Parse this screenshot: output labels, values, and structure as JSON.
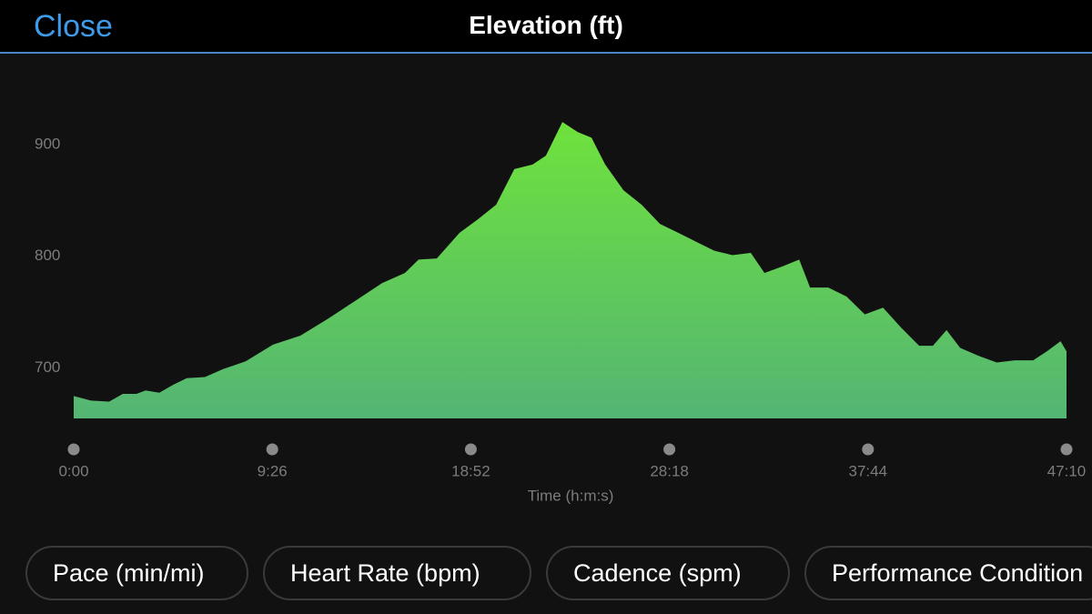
{
  "header": {
    "close": "Close"
  },
  "chart_data": {
    "type": "area",
    "title": "Elevation (ft)",
    "xlabel": "Time (h:m:s)",
    "x": [
      0,
      49,
      101,
      140,
      179,
      205,
      244,
      283,
      322,
      374,
      425,
      490,
      568,
      646,
      724,
      802,
      879,
      944,
      983,
      1035,
      1100,
      1152,
      1204,
      1256,
      1308,
      1346,
      1393,
      1437,
      1476,
      1515,
      1567,
      1619,
      1671,
      1723,
      1774,
      1826,
      1878,
      1930,
      1969,
      2021,
      2068,
      2099,
      2151,
      2203,
      2255,
      2307,
      2359,
      2410,
      2449,
      2488,
      2527,
      2579,
      2631,
      2683,
      2735,
      2774,
      2813,
      2830
    ],
    "values": [
      675,
      671,
      670,
      677,
      677,
      680,
      678,
      685,
      691,
      692,
      699,
      706,
      721,
      729,
      744,
      760,
      776,
      785,
      797,
      798,
      821,
      833,
      846,
      878,
      882,
      890,
      920,
      911,
      906,
      882,
      859,
      846,
      829,
      821,
      813,
      805,
      801,
      803,
      785,
      791,
      797,
      772,
      772,
      764,
      748,
      754,
      736,
      720,
      720,
      734,
      718,
      711,
      705,
      707,
      707,
      715,
      724,
      715
    ],
    "color": [
      "#6fe23c",
      "#54b574"
    ],
    "xlim": [
      0,
      2830
    ],
    "ylim": [
      655,
      960
    ],
    "xticks": [
      {
        "value": 0,
        "label": "0:00"
      },
      {
        "value": 566,
        "label": "9:26"
      },
      {
        "value": 1132,
        "label": "18:52"
      },
      {
        "value": 1698,
        "label": "28:18"
      },
      {
        "value": 2264,
        "label": "37:44"
      },
      {
        "value": 2830,
        "label": "47:10"
      }
    ],
    "yticks": [
      700,
      800,
      900
    ],
    "grid": false
  },
  "buttons": [
    "Pace (min/mi)",
    "Heart Rate (bpm)",
    "Cadence (spm)",
    "Performance Condition"
  ]
}
